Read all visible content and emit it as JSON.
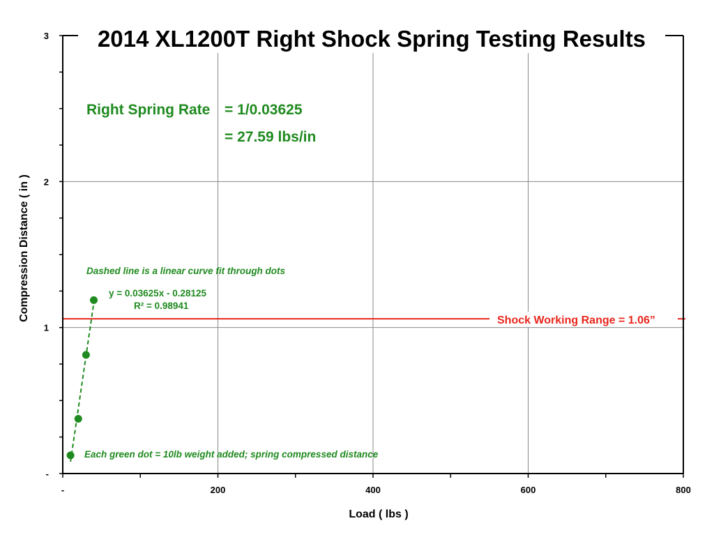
{
  "chart_data": {
    "type": "scatter",
    "title": "2014 XL1200T Right Shock Spring Testing Results",
    "xlabel": "Load ( lbs )",
    "ylabel": "Compression Distance ( in )",
    "xlim": [
      0,
      800
    ],
    "ylim": [
      0,
      3
    ],
    "x_ticks": [
      {
        "value": 0,
        "label": "-"
      },
      {
        "value": 200,
        "label": "200"
      },
      {
        "value": 400,
        "label": "400"
      },
      {
        "value": 600,
        "label": "600"
      },
      {
        "value": 800,
        "label": "800"
      }
    ],
    "y_ticks": [
      {
        "value": 0,
        "label": "-"
      },
      {
        "value": 1,
        "label": "1"
      },
      {
        "value": 2,
        "label": "2"
      },
      {
        "value": 3,
        "label": "3"
      }
    ],
    "grid": true,
    "series": [
      {
        "points": [
          {
            "x": 10,
            "y": 0.125
          },
          {
            "x": 20,
            "y": 0.375
          },
          {
            "x": 30,
            "y": 0.8125
          },
          {
            "x": 40,
            "y": 1.1875
          }
        ],
        "color": "#1f8a1f"
      }
    ],
    "fit_line": {
      "slope": 0.03625,
      "intercept": -0.28125,
      "x_range": [
        10,
        40
      ],
      "style": "dashed",
      "color": "#1f8a1f"
    },
    "reference_line": {
      "y": 1.06,
      "color": "#e8261c",
      "label": "Shock Working Range = 1.06”"
    },
    "annotations": {
      "rate_label": "Right Spring Rate",
      "rate_formula": "= 1/0.03625",
      "rate_value": "= 27.59 lbs/in",
      "fit_note": "Dashed line is a linear curve fit through dots",
      "equation": "y = 0.03625x - 0.28125",
      "r_squared": "R² = 0.98941",
      "dot_note": "Each green dot = 10lb weight added; spring compressed distance"
    }
  }
}
